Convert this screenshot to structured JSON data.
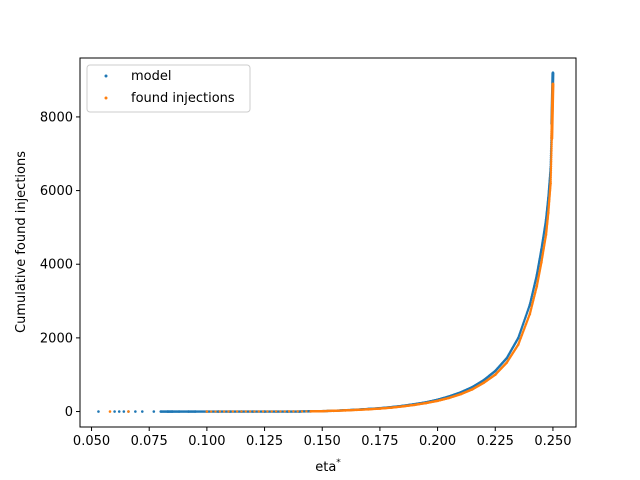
{
  "chart_data": {
    "type": "scatter",
    "xlabel": "eta",
    "xlabel_superscript": "*",
    "ylabel": "Cumulative found injections",
    "xlim": [
      0.045,
      0.26
    ],
    "ylim": [
      -420,
      9600
    ],
    "x_ticks": [
      0.05,
      0.075,
      0.1,
      0.125,
      0.15,
      0.175,
      0.2,
      0.225,
      0.25
    ],
    "x_tick_labels": [
      "0.050",
      "0.075",
      "0.100",
      "0.125",
      "0.150",
      "0.175",
      "0.200",
      "0.225",
      "0.250"
    ],
    "y_ticks": [
      0,
      2000,
      4000,
      6000,
      8000
    ],
    "y_tick_labels": [
      "0",
      "2000",
      "4000",
      "6000",
      "8000"
    ],
    "grid": false,
    "legend_position": "top-left",
    "series": [
      {
        "name": "model",
        "color": "#1f77b4",
        "x": [
          0.053,
          0.06,
          0.062,
          0.064,
          0.066,
          0.069,
          0.072,
          0.077,
          0.08,
          0.083,
          0.085,
          0.088,
          0.092,
          0.095,
          0.1,
          0.105,
          0.11,
          0.115,
          0.12,
          0.125,
          0.13,
          0.135,
          0.14,
          0.145,
          0.15,
          0.155,
          0.16,
          0.165,
          0.17,
          0.175,
          0.18,
          0.185,
          0.19,
          0.195,
          0.2,
          0.205,
          0.21,
          0.215,
          0.22,
          0.225,
          0.23,
          0.235,
          0.24,
          0.243,
          0.245,
          0.247,
          0.248,
          0.249,
          0.2495,
          0.25
        ],
        "y": [
          0,
          0,
          0,
          0,
          0,
          0,
          0,
          0,
          0,
          0,
          0,
          0,
          0,
          0,
          0,
          0,
          0,
          0,
          0,
          0,
          0,
          0,
          0,
          5,
          10,
          20,
          35,
          50,
          70,
          90,
          120,
          155,
          200,
          250,
          320,
          410,
          520,
          660,
          850,
          1100,
          1450,
          2000,
          2900,
          3700,
          4400,
          5200,
          5800,
          6600,
          7800,
          9200
        ]
      },
      {
        "name": "found injections",
        "color": "#ff7f0e",
        "x": [
          0.058,
          0.066,
          0.1,
          0.145,
          0.15,
          0.155,
          0.16,
          0.165,
          0.17,
          0.175,
          0.18,
          0.185,
          0.19,
          0.195,
          0.2,
          0.205,
          0.21,
          0.215,
          0.22,
          0.225,
          0.23,
          0.235,
          0.24,
          0.243,
          0.245,
          0.247,
          0.248,
          0.249,
          0.2495,
          0.25
        ],
        "y": [
          0,
          0,
          0,
          5,
          10,
          20,
          30,
          45,
          60,
          80,
          105,
          140,
          180,
          230,
          290,
          370,
          470,
          600,
          780,
          1000,
          1330,
          1820,
          2650,
          3400,
          4050,
          4800,
          5400,
          6200,
          7400,
          8900
        ]
      }
    ]
  }
}
